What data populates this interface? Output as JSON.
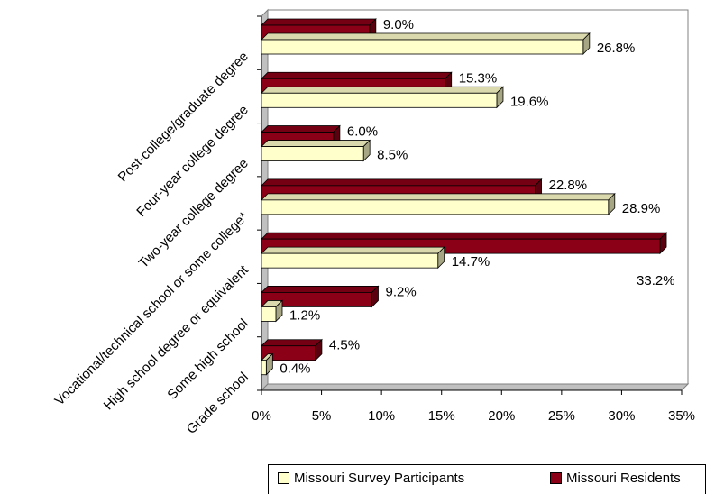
{
  "chart_data": {
    "type": "bar",
    "orientation": "horizontal",
    "categories": [
      "Post-college/graduate degree",
      "Four-year college degree",
      "Two-year college degree",
      "Vocational/technical school or some college*",
      "High school degree or equivalent",
      "Some high school",
      "Grade school"
    ],
    "series": [
      {
        "name": "Missouri Residents",
        "color": "#8b0016",
        "values": [
          9.0,
          15.3,
          6.0,
          22.8,
          33.2,
          9.2,
          4.5
        ],
        "labels": [
          "9.0%",
          "15.3%",
          "6.0%",
          "22.8%",
          "33.2%",
          "9.2%",
          "4.5%"
        ]
      },
      {
        "name": "Missouri Survey Participants",
        "color": "#ffffcc",
        "values": [
          26.8,
          19.6,
          8.5,
          28.9,
          14.7,
          1.2,
          0.4
        ],
        "labels": [
          "26.8%",
          "19.6%",
          "8.5%",
          "28.9%",
          "14.7%",
          "1.2%",
          "0.4%"
        ]
      }
    ],
    "xlim": [
      0,
      35
    ],
    "xticks": [
      "0%",
      "5%",
      "10%",
      "15%",
      "20%",
      "25%",
      "30%",
      "35%"
    ],
    "grid": false,
    "legend_position": "bottom"
  },
  "legend": {
    "items": [
      {
        "label": "Missouri Survey Participants",
        "color": "#ffffcc"
      },
      {
        "label": "Missouri Residents",
        "color": "#8b0016"
      }
    ]
  }
}
